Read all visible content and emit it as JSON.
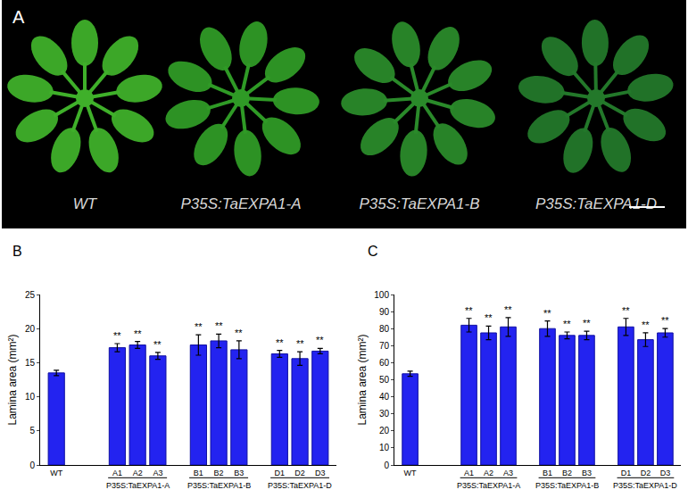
{
  "panel_a": {
    "letter": "A",
    "labels": [
      "WT",
      "P35S:TaEXPA1-A",
      "P35S:TaEXPA1-B",
      "P35S:TaEXPA1-D"
    ]
  },
  "chart_data": [
    {
      "type": "bar",
      "title": "B",
      "y_label": "Lamina area (mm²)",
      "categories": [
        "WT",
        null,
        null,
        "A1",
        "A2",
        "A3",
        null,
        "B1",
        "B2",
        "B3",
        null,
        "D1",
        "D2",
        "D3"
      ],
      "values": [
        13.5,
        null,
        null,
        17.2,
        17.6,
        16.0,
        null,
        17.6,
        18.2,
        16.9,
        null,
        16.3,
        15.6,
        16.7
      ],
      "errors": [
        0.4,
        null,
        null,
        0.6,
        0.5,
        0.5,
        null,
        1.5,
        1.0,
        1.3,
        null,
        0.5,
        1.0,
        0.4
      ],
      "color": "#2323f0",
      "ylim": [
        0,
        25
      ],
      "yticks": [
        0,
        5,
        10,
        15,
        20,
        25
      ],
      "grid": false,
      "groups": [
        {
          "label": "P35S:TaEXPA1-A",
          "categories": [
            "A1",
            "A2",
            "A3"
          ]
        },
        {
          "label": "P35S:TaEXPA1-B",
          "categories": [
            "B1",
            "B2",
            "B3"
          ]
        },
        {
          "label": "P35S:TaEXPA1-D",
          "categories": [
            "D1",
            "D2",
            "D3"
          ]
        }
      ],
      "annotations": [
        {
          "category": "A1",
          "text": "**"
        },
        {
          "category": "A2",
          "text": "**"
        },
        {
          "category": "A3",
          "text": "**"
        },
        {
          "category": "B1",
          "text": "**"
        },
        {
          "category": "B2",
          "text": "**"
        },
        {
          "category": "B3",
          "text": "**"
        },
        {
          "category": "D1",
          "text": "**"
        },
        {
          "category": "D2",
          "text": "**"
        },
        {
          "category": "D3",
          "text": "**"
        }
      ]
    },
    {
      "type": "bar",
      "title": "C",
      "y_label": "Lamina area (mm²)",
      "categories": [
        "WT",
        null,
        null,
        "A1",
        "A2",
        "A3",
        null,
        "B1",
        "B2",
        "B3",
        null,
        "D1",
        "D2",
        "D3"
      ],
      "values": [
        53.5,
        null,
        null,
        82,
        77.5,
        81,
        null,
        80,
        76,
        76,
        null,
        81,
        73.5,
        77.5
      ],
      "errors": [
        1.5,
        null,
        null,
        4,
        4,
        5.5,
        null,
        4.5,
        2,
        2.5,
        null,
        5,
        4,
        2.5
      ],
      "color": "#2323f0",
      "ylim": [
        0,
        100
      ],
      "yticks": [
        0,
        10,
        20,
        30,
        40,
        50,
        60,
        70,
        80,
        90,
        100
      ],
      "grid": false,
      "groups": [
        {
          "label": "P35S:TaEXPA1-A",
          "categories": [
            "A1",
            "A2",
            "A3"
          ]
        },
        {
          "label": "P35S:TaEXPA1-B",
          "categories": [
            "B1",
            "B2",
            "B3"
          ]
        },
        {
          "label": "P35S:TaEXPA1-D",
          "categories": [
            "D1",
            "D2",
            "D3"
          ]
        }
      ],
      "annotations": [
        {
          "category": "A1",
          "text": "**"
        },
        {
          "category": "A2",
          "text": "**"
        },
        {
          "category": "A3",
          "text": "**"
        },
        {
          "category": "B1",
          "text": "**"
        },
        {
          "category": "B2",
          "text": "**"
        },
        {
          "category": "B3",
          "text": "**"
        },
        {
          "category": "D1",
          "text": "**"
        },
        {
          "category": "D2",
          "text": "**"
        },
        {
          "category": "D3",
          "text": "**"
        }
      ]
    }
  ]
}
